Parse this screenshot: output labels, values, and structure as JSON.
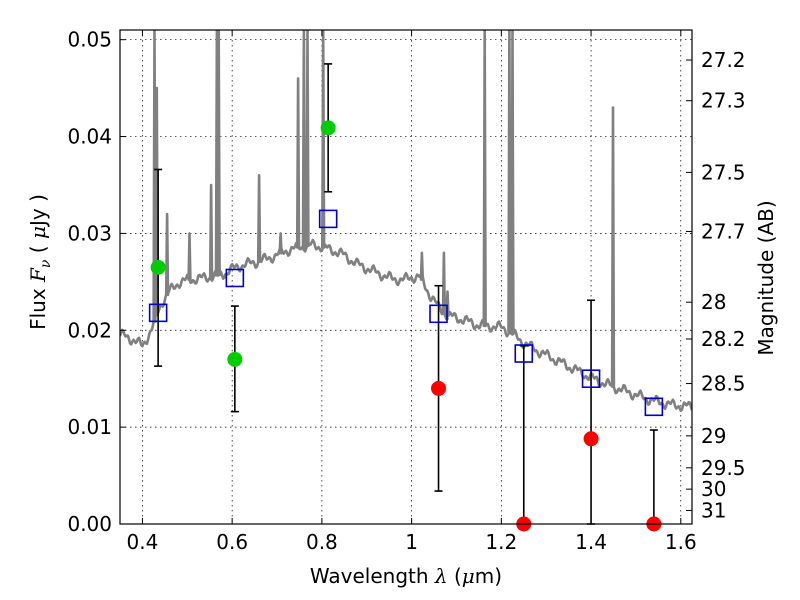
{
  "chart_data": {
    "type": "scatter",
    "title": "",
    "xlabel": {
      "text": "Wavelength",
      "symbol": "λ",
      "unit_open": "(",
      "unit_mu": "μ",
      "unit_rest": "m)"
    },
    "ylabel": {
      "text": "Flux",
      "symbol_main": "F",
      "symbol_sub": "ν",
      "unit_open": "(",
      "unit_mu": "μ",
      "unit_rest": "Jy",
      "unit_close": ")"
    },
    "y2label": "Magnitude (AB)",
    "xlim": [
      0.35,
      1.625
    ],
    "ylim": [
      0.0,
      0.051
    ],
    "grid": true,
    "x_ticks": [
      {
        "value": 0.4,
        "label": "0.4"
      },
      {
        "value": 0.6,
        "label": "0.6"
      },
      {
        "value": 0.8,
        "label": "0.8"
      },
      {
        "value": 1.0,
        "label": "1"
      },
      {
        "value": 1.2,
        "label": "1.2"
      },
      {
        "value": 1.4,
        "label": "1.4"
      },
      {
        "value": 1.6,
        "label": "1.6"
      }
    ],
    "y_ticks": [
      {
        "value": 0.0,
        "label": "0.00"
      },
      {
        "value": 0.01,
        "label": "0.01"
      },
      {
        "value": 0.02,
        "label": "0.02"
      },
      {
        "value": 0.03,
        "label": "0.03"
      },
      {
        "value": 0.04,
        "label": "0.04"
      },
      {
        "value": 0.05,
        "label": "0.05"
      }
    ],
    "y2_ticks": [
      {
        "label": "27.2",
        "flux": 0.0479
      },
      {
        "label": "27.3",
        "flux": 0.0437
      },
      {
        "label": "27.5",
        "flux": 0.0363
      },
      {
        "label": "27.7",
        "flux": 0.0302
      },
      {
        "label": "28",
        "flux": 0.0229
      },
      {
        "label": "28.2",
        "flux": 0.0191
      },
      {
        "label": "28.5",
        "flux": 0.0145
      },
      {
        "label": "29",
        "flux": 0.0091
      },
      {
        "label": "29.5",
        "flux": 0.0058
      },
      {
        "label": "30",
        "flux": 0.0036
      },
      {
        "label": "31",
        "flux": 0.0014
      }
    ],
    "colors": {
      "spectrum": "#808080",
      "detections": "#00cc00",
      "non_detections": "#ff0000",
      "model_photometry": "#0000cc",
      "errorbars": "#000000",
      "grid": "#000000"
    },
    "spectrum": {
      "continuum": [
        [
          0.35,
          0.0196
        ],
        [
          0.38,
          0.019
        ],
        [
          0.4,
          0.0184
        ],
        [
          0.42,
          0.02
        ],
        [
          0.44,
          0.0226
        ],
        [
          0.46,
          0.024
        ],
        [
          0.48,
          0.0249
        ],
        [
          0.5,
          0.0252
        ],
        [
          0.52,
          0.0253
        ],
        [
          0.55,
          0.0255
        ],
        [
          0.58,
          0.0258
        ],
        [
          0.6,
          0.0263
        ],
        [
          0.62,
          0.0267
        ],
        [
          0.65,
          0.027
        ],
        [
          0.68,
          0.0274
        ],
        [
          0.7,
          0.0278
        ],
        [
          0.72,
          0.0282
        ],
        [
          0.75,
          0.0286
        ],
        [
          0.78,
          0.0288
        ],
        [
          0.8,
          0.0286
        ],
        [
          0.82,
          0.0283
        ],
        [
          0.84,
          0.028
        ],
        [
          0.86,
          0.0274
        ],
        [
          0.88,
          0.0268
        ],
        [
          0.9,
          0.0264
        ],
        [
          0.92,
          0.026
        ],
        [
          0.94,
          0.0256
        ],
        [
          0.96,
          0.0253
        ],
        [
          0.98,
          0.0252
        ],
        [
          1.0,
          0.0255
        ],
        [
          1.02,
          0.0255
        ],
        [
          1.04,
          0.0237
        ],
        [
          1.06,
          0.0224
        ],
        [
          1.08,
          0.0215
        ],
        [
          1.1,
          0.0213
        ],
        [
          1.12,
          0.021
        ],
        [
          1.15,
          0.0205
        ],
        [
          1.18,
          0.0204
        ],
        [
          1.2,
          0.0203
        ],
        [
          1.22,
          0.0198
        ],
        [
          1.25,
          0.0187
        ],
        [
          1.28,
          0.0179
        ],
        [
          1.31,
          0.0172
        ],
        [
          1.34,
          0.0165
        ],
        [
          1.37,
          0.0158
        ],
        [
          1.4,
          0.0151
        ],
        [
          1.43,
          0.0145
        ],
        [
          1.46,
          0.014
        ],
        [
          1.49,
          0.0135
        ],
        [
          1.52,
          0.013
        ],
        [
          1.55,
          0.0126
        ],
        [
          1.58,
          0.0123
        ],
        [
          1.6,
          0.0122
        ],
        [
          1.625,
          0.0121
        ]
      ],
      "emission_lines": [
        {
          "x": 0.427,
          "peak": 0.051
        },
        {
          "x": 0.432,
          "peak": 0.045
        },
        {
          "x": 0.455,
          "peak": 0.032
        },
        {
          "x": 0.505,
          "peak": 0.03
        },
        {
          "x": 0.553,
          "peak": 0.035
        },
        {
          "x": 0.566,
          "peak": 0.051
        },
        {
          "x": 0.57,
          "peak": 0.051
        },
        {
          "x": 0.66,
          "peak": 0.036
        },
        {
          "x": 0.708,
          "peak": 0.03
        },
        {
          "x": 0.747,
          "peak": 0.046
        },
        {
          "x": 0.76,
          "peak": 0.051
        },
        {
          "x": 0.768,
          "peak": 0.051
        },
        {
          "x": 0.803,
          "peak": 0.051
        },
        {
          "x": 1.023,
          "peak": 0.028
        },
        {
          "x": 1.072,
          "peak": 0.028
        },
        {
          "x": 1.08,
          "peak": 0.024
        },
        {
          "x": 1.163,
          "peak": 0.051
        },
        {
          "x": 1.218,
          "peak": 0.051
        },
        {
          "x": 1.225,
          "peak": 0.051
        },
        {
          "x": 1.449,
          "peak": 0.043
        }
      ]
    },
    "series": [
      {
        "marker": "circle",
        "color": "#00cc00",
        "points": [
          {
            "x": 0.435,
            "y": 0.0265
          },
          {
            "x": 0.606,
            "y": 0.017
          },
          {
            "x": 0.814,
            "y": 0.0409
          }
        ]
      },
      {
        "marker": "circle",
        "color": "#ff0000",
        "points": [
          {
            "x": 1.06,
            "y": 0.014
          },
          {
            "x": 1.25,
            "y": 0.0
          },
          {
            "x": 1.4,
            "y": 0.0088
          },
          {
            "x": 1.54,
            "y": 0.0
          }
        ]
      },
      {
        "marker": "open-square",
        "color": "#0000cc",
        "points": [
          {
            "x": 0.435,
            "y": 0.0218
          },
          {
            "x": 0.606,
            "y": 0.0254
          },
          {
            "x": 0.814,
            "y": 0.0315
          },
          {
            "x": 1.06,
            "y": 0.0217
          },
          {
            "x": 1.25,
            "y": 0.0176
          },
          {
            "x": 1.4,
            "y": 0.015
          },
          {
            "x": 1.54,
            "y": 0.0121
          }
        ]
      }
    ],
    "errorbars": [
      {
        "x": 0.435,
        "low": 0.0163,
        "high": 0.0366
      },
      {
        "x": 0.606,
        "low": 0.0116,
        "high": 0.0225
      },
      {
        "x": 0.814,
        "low": 0.0343,
        "high": 0.0475
      },
      {
        "x": 1.06,
        "low": 0.0034,
        "high": 0.0246
      },
      {
        "x": 1.25,
        "low": 0.0,
        "high": 0.0184
      },
      {
        "x": 1.4,
        "low": 0.0,
        "high": 0.0231
      },
      {
        "x": 1.54,
        "low": 0.0,
        "high": 0.0097
      }
    ]
  }
}
